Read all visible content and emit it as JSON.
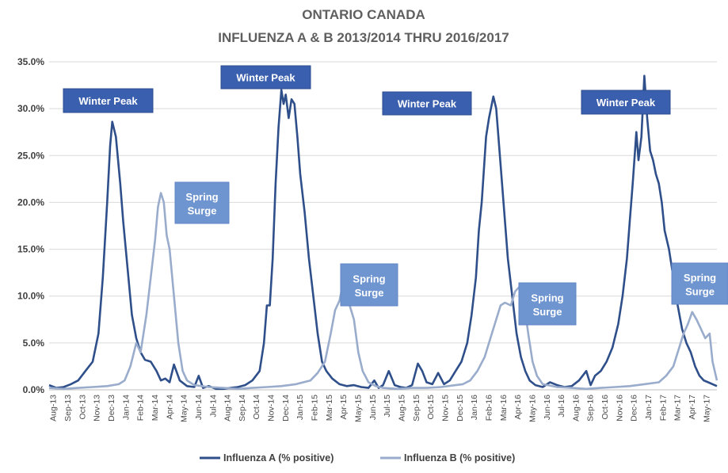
{
  "chart_data": {
    "type": "line",
    "title": "ONTARIO CANADA",
    "subtitle": "INFLUENZA A & B 2013/2014 THRU 2016/2017",
    "xlabel": "",
    "ylabel": "",
    "ylim": [
      0,
      35
    ],
    "yticks": [
      "0.0%",
      "5.0%",
      "10.0%",
      "15.0%",
      "20.0%",
      "25.0%",
      "30.0%",
      "35.0%"
    ],
    "x_labels": [
      "Aug-13",
      "Sep-13",
      "Oct-13",
      "Nov-13",
      "Dec-13",
      "Jan-14",
      "Feb-14",
      "Mar-14",
      "Apr-14",
      "May-14",
      "Jun-14",
      "Jul-14",
      "Aug-14",
      "Sep-14",
      "Oct-14",
      "Nov-14",
      "Dec-14",
      "Jan-15",
      "Feb-15",
      "Mar-15",
      "Apr-15",
      "May-15",
      "Jun-15",
      "Jul-15",
      "Aug-15",
      "Sep-15",
      "Oct-15",
      "Nov-15",
      "Dec-15",
      "Jan-16",
      "Feb-16",
      "Mar-16",
      "Apr-16",
      "May-16",
      "Jun-16",
      "Jul-16",
      "Aug-16",
      "Sep-16",
      "Oct-16",
      "Nov-16",
      "Dec-16",
      "Jan-17",
      "Feb-17",
      "Mar-17",
      "Apr-17",
      "May-17"
    ],
    "grid": true,
    "legend_position": "bottom",
    "series": [
      {
        "name": "Influenza A (% positive)",
        "color": "#2f4f8a",
        "points": [
          [
            0,
            0.5
          ],
          [
            0.5,
            0.2
          ],
          [
            1,
            0.3
          ],
          [
            1.5,
            0.6
          ],
          [
            2,
            1.0
          ],
          [
            2.5,
            2.0
          ],
          [
            3,
            3.0
          ],
          [
            3.4,
            6.0
          ],
          [
            3.7,
            12.0
          ],
          [
            4,
            20.0
          ],
          [
            4.2,
            26.0
          ],
          [
            4.35,
            28.6
          ],
          [
            4.6,
            27.0
          ],
          [
            4.9,
            22.0
          ],
          [
            5.1,
            18.0
          ],
          [
            5.4,
            13.0
          ],
          [
            5.7,
            8.0
          ],
          [
            6,
            5.5
          ],
          [
            6.3,
            4.0
          ],
          [
            6.6,
            3.2
          ],
          [
            7,
            3.0
          ],
          [
            7.4,
            2.0
          ],
          [
            7.7,
            1.0
          ],
          [
            8,
            1.2
          ],
          [
            8.3,
            0.8
          ],
          [
            8.6,
            2.7
          ],
          [
            9,
            1.0
          ],
          [
            9.5,
            0.4
          ],
          [
            10,
            0.3
          ],
          [
            10.3,
            1.5
          ],
          [
            10.6,
            0.2
          ],
          [
            11,
            0.4
          ],
          [
            11.5,
            0.1
          ],
          [
            12,
            0.1
          ],
          [
            12.5,
            0.2
          ],
          [
            13,
            0.3
          ],
          [
            13.5,
            0.5
          ],
          [
            14,
            1.0
          ],
          [
            14.5,
            2.0
          ],
          [
            14.8,
            5.0
          ],
          [
            15,
            9.0
          ],
          [
            15.2,
            9.0
          ],
          [
            15.4,
            14.0
          ],
          [
            15.6,
            22.0
          ],
          [
            15.8,
            28.0
          ],
          [
            16,
            32.0
          ],
          [
            16.15,
            30.5
          ],
          [
            16.3,
            31.5
          ],
          [
            16.5,
            29.0
          ],
          [
            16.7,
            31.0
          ],
          [
            16.9,
            30.5
          ],
          [
            17.1,
            27.0
          ],
          [
            17.3,
            23.0
          ],
          [
            17.6,
            19.0
          ],
          [
            17.9,
            14.0
          ],
          [
            18.2,
            10.0
          ],
          [
            18.5,
            6.0
          ],
          [
            18.8,
            3.0
          ],
          [
            19.1,
            2.0
          ],
          [
            19.5,
            1.2
          ],
          [
            20,
            0.6
          ],
          [
            20.5,
            0.4
          ],
          [
            21,
            0.5
          ],
          [
            21.5,
            0.3
          ],
          [
            22,
            0.2
          ],
          [
            22.4,
            1.0
          ],
          [
            22.7,
            0.2
          ],
          [
            23,
            0.5
          ],
          [
            23.4,
            2.0
          ],
          [
            23.8,
            0.5
          ],
          [
            24.2,
            0.3
          ],
          [
            24.6,
            0.2
          ],
          [
            25,
            0.5
          ],
          [
            25.4,
            2.8
          ],
          [
            25.7,
            2.0
          ],
          [
            26,
            0.8
          ],
          [
            26.4,
            0.6
          ],
          [
            26.8,
            1.8
          ],
          [
            27.2,
            0.6
          ],
          [
            27.6,
            1.0
          ],
          [
            28,
            2.0
          ],
          [
            28.4,
            3.0
          ],
          [
            28.8,
            5.0
          ],
          [
            29.1,
            8.0
          ],
          [
            29.4,
            12.0
          ],
          [
            29.6,
            17.0
          ],
          [
            29.8,
            20.0
          ],
          [
            30.1,
            27.0
          ],
          [
            30.3,
            29.0
          ],
          [
            30.6,
            31.3
          ],
          [
            30.8,
            30.0
          ],
          [
            31,
            26.0
          ],
          [
            31.3,
            20.0
          ],
          [
            31.6,
            14.0
          ],
          [
            31.9,
            10.0
          ],
          [
            32.2,
            6.0
          ],
          [
            32.5,
            3.5
          ],
          [
            32.8,
            2.0
          ],
          [
            33.1,
            1.0
          ],
          [
            33.5,
            0.5
          ],
          [
            34,
            0.3
          ],
          [
            34.5,
            0.8
          ],
          [
            35,
            0.5
          ],
          [
            35.5,
            0.3
          ],
          [
            36,
            0.4
          ],
          [
            36.5,
            1.0
          ],
          [
            37,
            2.0
          ],
          [
            37.3,
            0.5
          ],
          [
            37.6,
            1.5
          ],
          [
            38,
            2.0
          ],
          [
            38.4,
            3.0
          ],
          [
            38.8,
            4.5
          ],
          [
            39.2,
            7.0
          ],
          [
            39.5,
            10.0
          ],
          [
            39.8,
            14.0
          ],
          [
            40,
            18.0
          ],
          [
            40.2,
            22.0
          ],
          [
            40.45,
            27.5
          ],
          [
            40.6,
            24.5
          ],
          [
            40.8,
            27.0
          ],
          [
            41,
            33.5
          ],
          [
            41.2,
            29.0
          ],
          [
            41.4,
            25.5
          ],
          [
            41.6,
            24.5
          ],
          [
            41.8,
            23.0
          ],
          [
            42,
            22.0
          ],
          [
            42.2,
            20.0
          ],
          [
            42.4,
            17.0
          ],
          [
            42.7,
            15.0
          ],
          [
            43,
            12.0
          ],
          [
            43.3,
            9.0
          ],
          [
            43.6,
            6.5
          ],
          [
            43.9,
            5.0
          ],
          [
            44.2,
            4.0
          ],
          [
            44.5,
            2.5
          ],
          [
            44.8,
            1.5
          ],
          [
            45.1,
            1.0
          ],
          [
            45.4,
            0.8
          ],
          [
            45.7,
            0.6
          ],
          [
            46,
            0.4
          ]
        ]
      },
      {
        "name": "Influenza B (% positive)",
        "color": "#9aaccc",
        "points": [
          [
            0,
            0.2
          ],
          [
            1,
            0.1
          ],
          [
            2,
            0.2
          ],
          [
            3,
            0.3
          ],
          [
            4,
            0.4
          ],
          [
            4.8,
            0.6
          ],
          [
            5.2,
            1.0
          ],
          [
            5.6,
            2.5
          ],
          [
            6,
            5.0
          ],
          [
            6.3,
            4.0
          ],
          [
            6.7,
            8.0
          ],
          [
            7,
            12.0
          ],
          [
            7.3,
            16.0
          ],
          [
            7.5,
            19.5
          ],
          [
            7.7,
            21.0
          ],
          [
            7.9,
            20.0
          ],
          [
            8.1,
            16.5
          ],
          [
            8.3,
            15.0
          ],
          [
            8.6,
            10.0
          ],
          [
            8.9,
            5.0
          ],
          [
            9.2,
            2.0
          ],
          [
            9.5,
            1.0
          ],
          [
            10,
            0.5
          ],
          [
            11,
            0.3
          ],
          [
            12,
            0.2
          ],
          [
            13,
            0.1
          ],
          [
            14,
            0.2
          ],
          [
            15,
            0.3
          ],
          [
            16,
            0.4
          ],
          [
            17,
            0.6
          ],
          [
            18,
            1.0
          ],
          [
            18.5,
            1.8
          ],
          [
            19,
            3.0
          ],
          [
            19.4,
            6.0
          ],
          [
            19.7,
            8.5
          ],
          [
            20,
            9.5
          ],
          [
            20.2,
            11.0
          ],
          [
            20.4,
            12.5
          ],
          [
            20.7,
            9.0
          ],
          [
            21,
            7.5
          ],
          [
            21.3,
            4.0
          ],
          [
            21.6,
            2.0
          ],
          [
            22,
            0.8
          ],
          [
            22.5,
            0.4
          ],
          [
            23,
            0.2
          ],
          [
            24,
            0.1
          ],
          [
            25,
            0.2
          ],
          [
            26,
            0.2
          ],
          [
            27,
            0.3
          ],
          [
            28,
            0.5
          ],
          [
            28.5,
            0.6
          ],
          [
            29,
            1.0
          ],
          [
            29.5,
            2.0
          ],
          [
            30,
            3.5
          ],
          [
            30.4,
            5.5
          ],
          [
            30.8,
            7.5
          ],
          [
            31.1,
            9.0
          ],
          [
            31.4,
            9.3
          ],
          [
            31.8,
            9.0
          ],
          [
            32.1,
            10.5
          ],
          [
            32.4,
            11.0
          ],
          [
            32.7,
            9.5
          ],
          [
            33,
            6.0
          ],
          [
            33.3,
            3.0
          ],
          [
            33.6,
            1.5
          ],
          [
            34,
            0.6
          ],
          [
            35,
            0.3
          ],
          [
            36,
            0.2
          ],
          [
            37,
            0.1
          ],
          [
            38,
            0.2
          ],
          [
            39,
            0.3
          ],
          [
            40,
            0.4
          ],
          [
            41,
            0.6
          ],
          [
            42,
            0.8
          ],
          [
            42.5,
            1.5
          ],
          [
            43,
            2.5
          ],
          [
            43.4,
            4.5
          ],
          [
            43.7,
            6.0
          ],
          [
            44,
            7.0
          ],
          [
            44.3,
            8.3
          ],
          [
            44.6,
            7.5
          ],
          [
            44.9,
            6.5
          ],
          [
            45.2,
            5.5
          ],
          [
            45.5,
            6.0
          ],
          [
            45.7,
            3.0
          ],
          [
            46,
            1.0
          ]
        ]
      }
    ],
    "annotations": [
      {
        "text": "Winter Peak",
        "style": "dark"
      },
      {
        "text": "Spring Surge",
        "style": "light"
      },
      {
        "text": "Winter Peak",
        "style": "dark"
      },
      {
        "text": "Spring Surge",
        "style": "light"
      },
      {
        "text": "Winter Peak",
        "style": "dark"
      },
      {
        "text": "Spring Surge",
        "style": "light"
      },
      {
        "text": "Winter Peak",
        "style": "dark"
      },
      {
        "text": "Spring Surge",
        "style": "light"
      }
    ]
  }
}
